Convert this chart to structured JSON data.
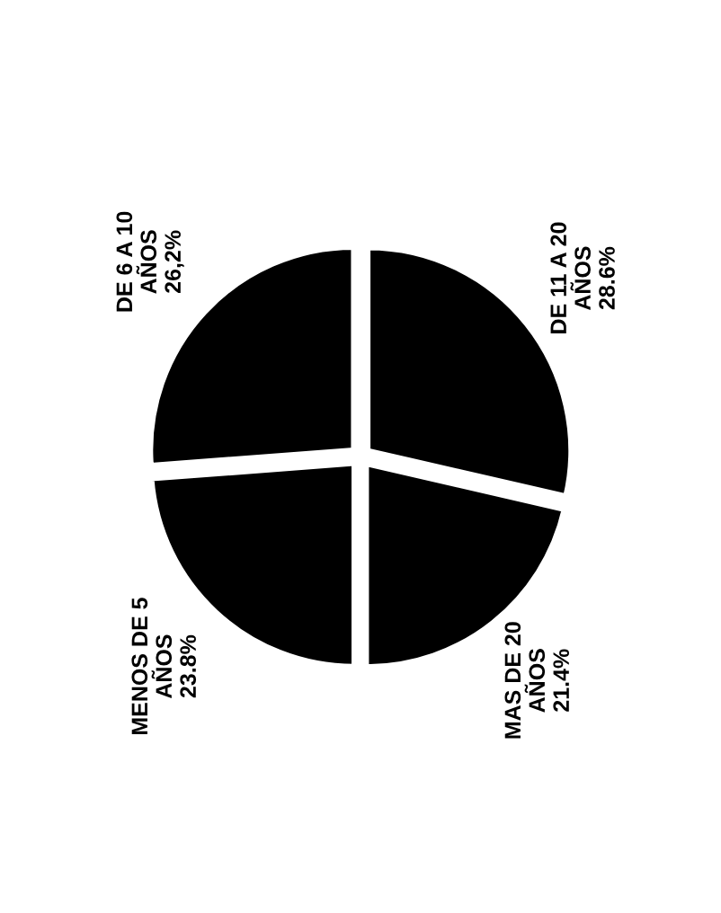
{
  "chart_data": {
    "type": "pie",
    "categories": [
      "DE 6 A 10\nAÑOS",
      "MENOS DE 5\nAÑOS",
      "MAS DE 20\nAÑOS",
      "DE 11 A 20\nAÑOS"
    ],
    "values": [
      26.2,
      23.8,
      21.4,
      28.6
    ],
    "value_labels": [
      "26,2%",
      "23.8%",
      "21.4%",
      "28.6%"
    ],
    "colors": [
      "#000000",
      "#000000",
      "#000000",
      "#000000"
    ]
  }
}
